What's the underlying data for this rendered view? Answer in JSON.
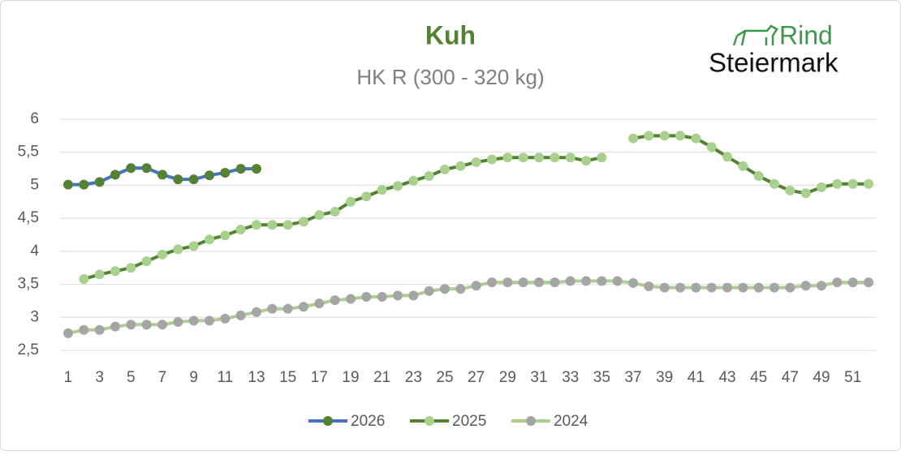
{
  "chart_data": {
    "type": "line",
    "title": "Kuh",
    "subtitle": "HK R (300 - 320 kg)",
    "x": [
      1,
      2,
      3,
      4,
      5,
      6,
      7,
      8,
      9,
      10,
      11,
      12,
      13,
      14,
      15,
      16,
      17,
      18,
      19,
      20,
      21,
      22,
      23,
      24,
      25,
      26,
      27,
      28,
      29,
      30,
      31,
      32,
      33,
      34,
      35,
      36,
      37,
      38,
      39,
      40,
      41,
      42,
      43,
      44,
      45,
      46,
      47,
      48,
      49,
      50,
      51,
      52
    ],
    "xlim": [
      0.5,
      52.5
    ],
    "xticks": [
      1,
      3,
      5,
      7,
      9,
      11,
      13,
      15,
      17,
      19,
      21,
      23,
      25,
      27,
      29,
      31,
      33,
      35,
      37,
      39,
      41,
      43,
      45,
      47,
      49,
      51
    ],
    "ylim": [
      2.5,
      6
    ],
    "yticks": [
      {
        "value": 2.5,
        "label": "2,5"
      },
      3,
      {
        "value": 3.5,
        "label": "3,5"
      },
      4,
      {
        "value": 4.5,
        "label": "4,5"
      },
      5,
      {
        "value": 5.5,
        "label": "5,5"
      },
      6
    ],
    "grid": true,
    "legend": "bottom",
    "series": [
      {
        "name": "2026",
        "color": "#4472c4",
        "marker_color": "#548235",
        "values": [
          5.01,
          5.01,
          5.05,
          5.16,
          5.26,
          5.26,
          5.16,
          5.09,
          5.09,
          5.15,
          5.19,
          5.25,
          5.25,
          null,
          null,
          null,
          null,
          null,
          null,
          null,
          null,
          null,
          null,
          null,
          null,
          null,
          null,
          null,
          null,
          null,
          null,
          null,
          null,
          null,
          null,
          null,
          null,
          null,
          null,
          null,
          null,
          null,
          null,
          null,
          null,
          null,
          null,
          null,
          null,
          null,
          null,
          null
        ]
      },
      {
        "name": "2025",
        "color": "#548235",
        "marker_color": "#a9d18e",
        "values": [
          null,
          3.58,
          3.65,
          3.7,
          3.75,
          3.85,
          3.95,
          4.03,
          4.08,
          4.18,
          4.24,
          4.33,
          4.4,
          4.4,
          4.4,
          4.45,
          4.55,
          4.6,
          4.75,
          4.83,
          4.93,
          4.99,
          5.07,
          5.14,
          5.24,
          5.29,
          5.35,
          5.39,
          5.42,
          5.42,
          5.42,
          5.42,
          5.42,
          5.37,
          5.42,
          null,
          5.71,
          5.75,
          5.75,
          5.75,
          5.71,
          5.58,
          5.43,
          5.29,
          5.14,
          5.02,
          4.92,
          4.88,
          4.97,
          5.02,
          5.02,
          5.02
        ]
      },
      {
        "name": "2024",
        "color": "#a9d18e",
        "marker_color": "#a5a5a5",
        "values": [
          2.76,
          2.81,
          2.81,
          2.86,
          2.89,
          2.89,
          2.89,
          2.93,
          2.95,
          2.95,
          2.98,
          3.03,
          3.08,
          3.13,
          3.13,
          3.16,
          3.21,
          3.26,
          3.28,
          3.31,
          3.31,
          3.33,
          3.33,
          3.4,
          3.43,
          3.43,
          3.48,
          3.53,
          3.53,
          3.53,
          3.53,
          3.53,
          3.55,
          3.55,
          3.55,
          3.55,
          3.52,
          3.47,
          3.45,
          3.45,
          3.45,
          3.45,
          3.45,
          3.45,
          3.45,
          3.45,
          3.45,
          3.48,
          3.48,
          3.53,
          3.53,
          3.53
        ]
      }
    ]
  },
  "logo": {
    "line1": "Rind",
    "line2": "Steiermark"
  }
}
